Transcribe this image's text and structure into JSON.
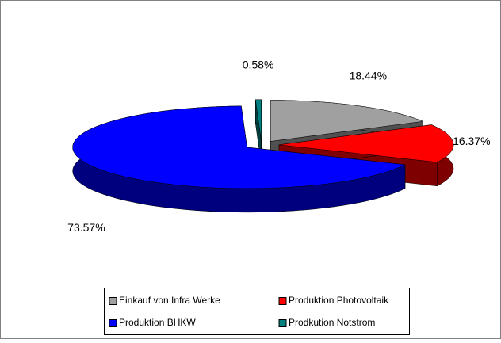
{
  "chart_data": {
    "type": "pie",
    "categories": [
      "Einkauf von Infra Werke",
      "Produktion Photovoltaik",
      "Produktion BHKW",
      "Prodkution Notstrom"
    ],
    "values": [
      18.44,
      16.37,
      73.57,
      0.58
    ],
    "value_labels": [
      "18.44%",
      "16.37%",
      "73.57%",
      "0.58%"
    ],
    "colors": [
      "#a0a0a0",
      "#ff0000",
      "#0000ff",
      "#008080"
    ],
    "legend": "bottom"
  }
}
